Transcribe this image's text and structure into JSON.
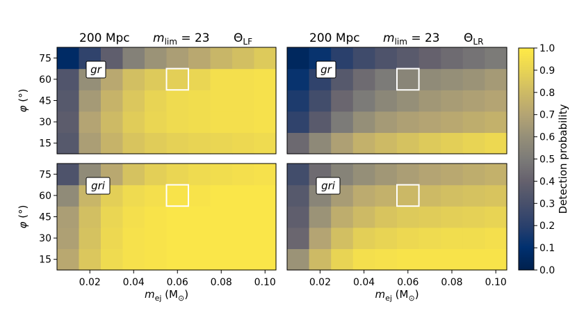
{
  "chart_data": {
    "type": "heatmap",
    "colormap": "cividis",
    "colorbar": {
      "label": "Detection probability",
      "range": [
        0.0,
        1.0
      ],
      "ticks": [
        "0.0",
        "0.1",
        "0.2",
        "0.3",
        "0.4",
        "0.5",
        "0.6",
        "0.7",
        "0.8",
        "0.9",
        "1.0"
      ]
    },
    "x": {
      "label_base": "m",
      "label_sub": "ej",
      "label_unit": " (M",
      "label_unit_sub": "⊙",
      "label_close": ")",
      "cells": [
        0.01,
        0.02,
        0.03,
        0.04,
        0.05,
        0.06,
        0.07,
        0.08,
        0.09,
        0.1
      ],
      "range": [
        0.005,
        0.105
      ],
      "ticks": [
        "0.02",
        "0.04",
        "0.06",
        "0.08",
        "0.10"
      ]
    },
    "y": {
      "label_base": "φ",
      "label_unit": " (°)",
      "cells": [
        15,
        30,
        45,
        60,
        75
      ],
      "range": [
        7.5,
        82.5
      ],
      "ticks": [
        "15",
        "30",
        "45",
        "60",
        "75"
      ]
    },
    "title_parts": {
      "distance": "200 Mpc",
      "mlim_base": "m",
      "mlim_sub": "lim",
      "mlim_value": " = 23",
      "theta": "Θ"
    },
    "panels": [
      {
        "theta_sub": "LF",
        "filter": "gr",
        "highlight": {
          "mej": 0.06,
          "phi": 60
        },
        "rows": [
          [
            0.35,
            0.67,
            0.77,
            0.84,
            0.87,
            0.89,
            0.9,
            0.91,
            0.92,
            0.93
          ],
          [
            0.37,
            0.7,
            0.8,
            0.87,
            0.91,
            0.93,
            0.94,
            0.95,
            0.95,
            0.96
          ],
          [
            0.35,
            0.65,
            0.77,
            0.85,
            0.9,
            0.93,
            0.94,
            0.95,
            0.95,
            0.96
          ],
          [
            0.33,
            0.6,
            0.72,
            0.82,
            0.86,
            0.88,
            0.91,
            0.95,
            0.95,
            0.96
          ],
          [
            0.07,
            0.22,
            0.38,
            0.53,
            0.62,
            0.67,
            0.72,
            0.78,
            0.82,
            0.86
          ]
        ]
      },
      {
        "theta_sub": "LR",
        "filter": "gr",
        "highlight": {
          "mej": 0.06,
          "phi": 60
        },
        "rows": [
          [
            0.43,
            0.57,
            0.68,
            0.76,
            0.8,
            0.83,
            0.86,
            0.88,
            0.9,
            0.92
          ],
          [
            0.22,
            0.36,
            0.5,
            0.6,
            0.65,
            0.68,
            0.7,
            0.72,
            0.74,
            0.76
          ],
          [
            0.17,
            0.28,
            0.42,
            0.5,
            0.56,
            0.6,
            0.64,
            0.66,
            0.68,
            0.7
          ],
          [
            0.12,
            0.22,
            0.35,
            0.44,
            0.5,
            0.55,
            0.58,
            0.6,
            0.62,
            0.65
          ],
          [
            0.05,
            0.12,
            0.2,
            0.27,
            0.32,
            0.36,
            0.4,
            0.44,
            0.47,
            0.5
          ]
        ]
      },
      {
        "theta_sub": "LF",
        "filter": "gri",
        "highlight": {
          "mej": 0.06,
          "phi": 60
        },
        "rows": [
          [
            0.72,
            0.85,
            0.93,
            0.96,
            0.97,
            0.98,
            0.98,
            0.98,
            0.98,
            0.98
          ],
          [
            0.68,
            0.83,
            0.92,
            0.96,
            0.97,
            0.98,
            0.98,
            0.98,
            0.98,
            0.98
          ],
          [
            0.67,
            0.82,
            0.91,
            0.95,
            0.97,
            0.98,
            0.98,
            0.98,
            0.98,
            0.98
          ],
          [
            0.58,
            0.78,
            0.88,
            0.93,
            0.95,
            0.97,
            0.97,
            0.98,
            0.98,
            0.98
          ],
          [
            0.32,
            0.58,
            0.72,
            0.83,
            0.88,
            0.91,
            0.93,
            0.94,
            0.95,
            0.96
          ]
        ]
      },
      {
        "theta_sub": "LR",
        "filter": "gri",
        "highlight": {
          "mej": 0.06,
          "phi": 60
        },
        "rows": [
          [
            0.62,
            0.8,
            0.9,
            0.95,
            0.96,
            0.97,
            0.97,
            0.97,
            0.97,
            0.97
          ],
          [
            0.42,
            0.7,
            0.82,
            0.88,
            0.9,
            0.92,
            0.93,
            0.94,
            0.94,
            0.95
          ],
          [
            0.38,
            0.62,
            0.74,
            0.8,
            0.84,
            0.86,
            0.87,
            0.88,
            0.89,
            0.9
          ],
          [
            0.35,
            0.55,
            0.66,
            0.73,
            0.76,
            0.79,
            0.8,
            0.82,
            0.83,
            0.84
          ],
          [
            0.28,
            0.44,
            0.54,
            0.6,
            0.64,
            0.67,
            0.7,
            0.72,
            0.74,
            0.76
          ]
        ]
      }
    ]
  }
}
